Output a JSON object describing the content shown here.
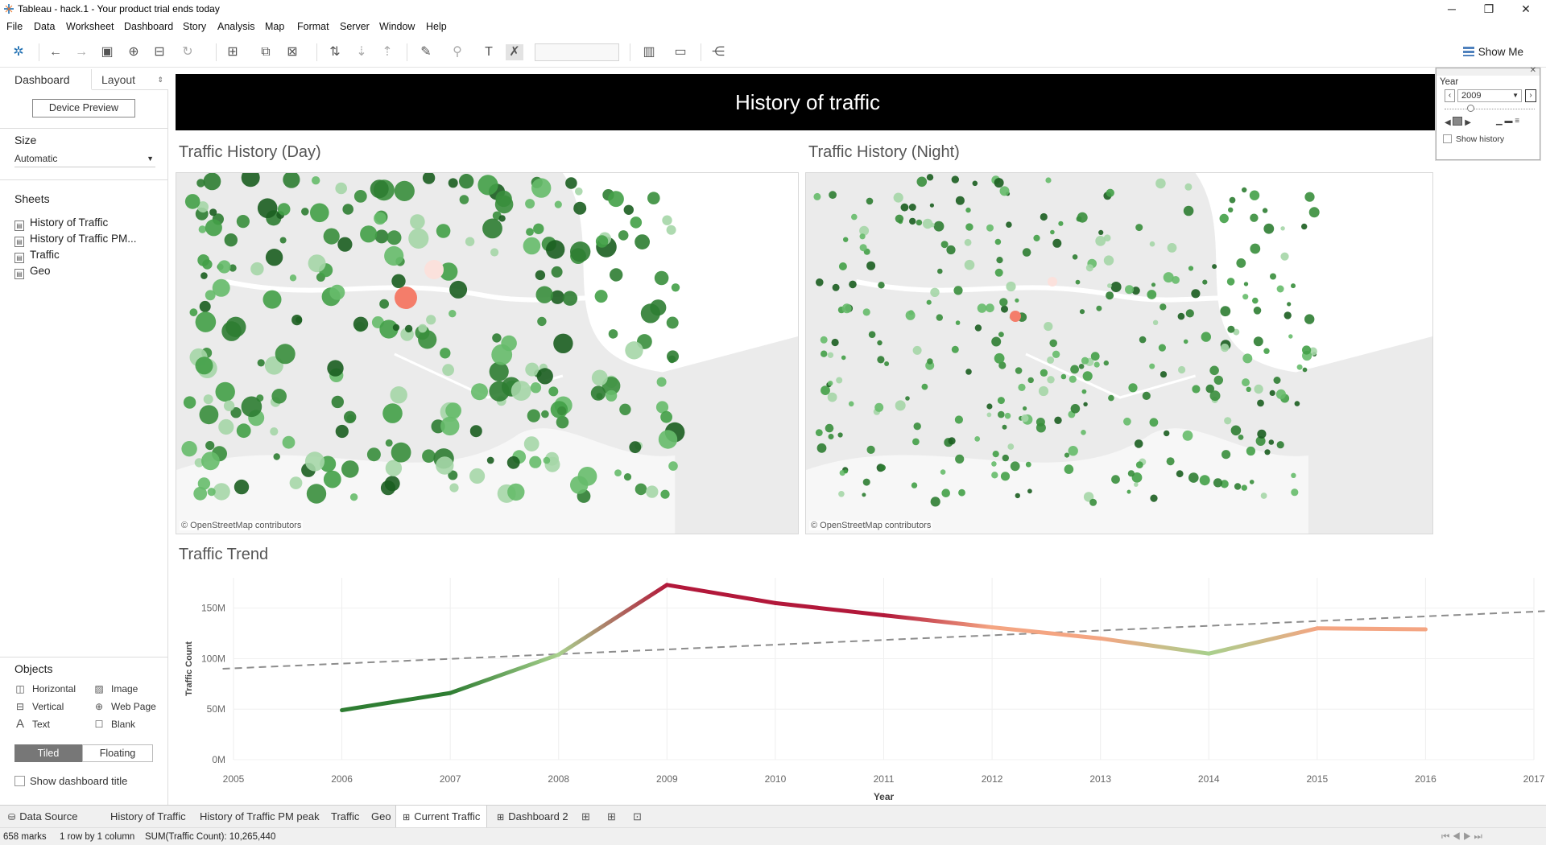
{
  "window": {
    "title": "Tableau - hack.1 - Your product trial ends today",
    "controls": [
      "─",
      "❐",
      "✕"
    ]
  },
  "menu": [
    "File",
    "Data",
    "Worksheet",
    "Dashboard",
    "Story",
    "Analysis",
    "Map",
    "Format",
    "Server",
    "Window",
    "Help"
  ],
  "toolbar": {
    "show_me": "Show Me"
  },
  "left_panel": {
    "tabs": [
      "Dashboard",
      "Layout"
    ],
    "device_preview": "Device Preview",
    "size_label": "Size",
    "size_value": "Automatic",
    "sheets_label": "Sheets",
    "sheets": [
      "History of Traffic",
      "History of Traffic PM...",
      "Traffic",
      "Geo"
    ],
    "objects_label": "Objects",
    "objects": [
      {
        "label": "Horizontal",
        "icon": "horizontal-icon"
      },
      {
        "label": "Image",
        "icon": "image-icon"
      },
      {
        "label": "Vertical",
        "icon": "vertical-icon"
      },
      {
        "label": "Web Page",
        "icon": "globe-icon"
      },
      {
        "label": "Text",
        "icon": "text-icon"
      },
      {
        "label": "Blank",
        "icon": "blank-icon"
      }
    ],
    "tiled": "Tiled",
    "floating": "Floating",
    "show_title": "Show dashboard title"
  },
  "dashboard": {
    "title": "History of traffic",
    "day_title": "Traffic History (Day)",
    "night_title": "Traffic History (Night)",
    "attribution": "© OpenStreetMap contributors",
    "trend_title": "Traffic Trend"
  },
  "year_filter": {
    "label": "Year",
    "value": "2009",
    "show_history": "Show history"
  },
  "chart_data": {
    "type": "line",
    "x": [
      2006,
      2007,
      2008,
      2009,
      2010,
      2011,
      2012,
      2013,
      2014,
      2015,
      2016
    ],
    "series": [
      {
        "values": [
          49,
          66,
          104,
          173,
          155,
          143,
          131,
          120,
          105,
          130,
          129
        ]
      }
    ],
    "trend_line": {
      "x": [
        2004.9,
        2017.1
      ],
      "y": [
        90,
        147
      ]
    },
    "xlabel": "Year",
    "ylabel": "Traffic Count",
    "xlim": [
      2005,
      2017
    ],
    "xticks": [
      "2005",
      "2006",
      "2007",
      "2008",
      "2009",
      "2010",
      "2011",
      "2012",
      "2013",
      "2014",
      "2015",
      "2016",
      "2017"
    ],
    "ylim": [
      0,
      180
    ],
    "yticks": [
      {
        "v": 0,
        "label": "0M"
      },
      {
        "v": 50,
        "label": "50M"
      },
      {
        "v": 100,
        "label": "100M"
      },
      {
        "v": 150,
        "label": "150M"
      }
    ],
    "colors": {
      "low": "#2e7d32",
      "mid": "#a8d08d",
      "high": "#b2183a",
      "peach": "#f4a582"
    }
  },
  "bottom_tabs": [
    "Data Source",
    "History of Traffic",
    "History of Traffic PM peak",
    "Traffic",
    "Geo",
    "Current Traffic",
    "Dashboard 2"
  ],
  "status": {
    "marks": "658 marks",
    "rows": "1 row by 1 column",
    "sum": "SUM(Traffic Count): 10,265,440"
  }
}
